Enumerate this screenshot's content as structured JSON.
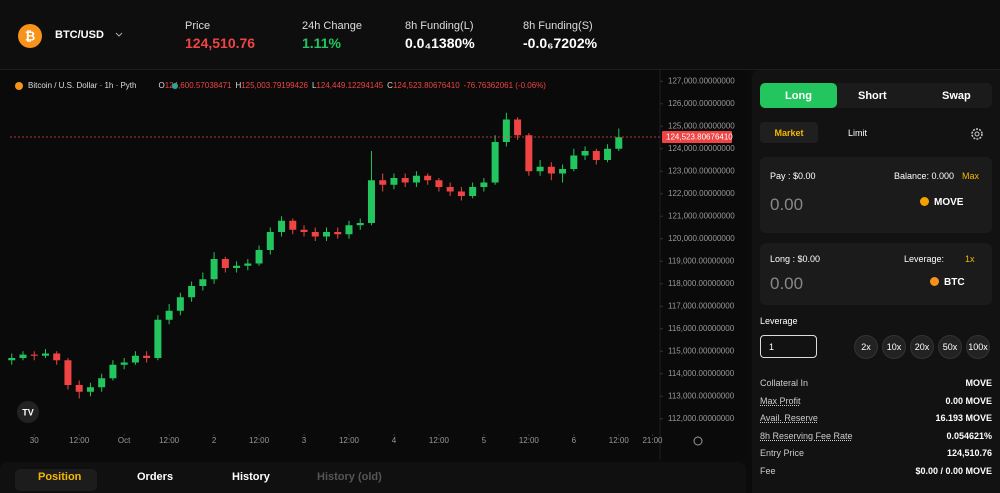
{
  "header": {
    "pair": "BTC/USD",
    "stats": [
      {
        "label": "Price",
        "value": "124,510.76",
        "color": "#ef4444"
      },
      {
        "label": "24h Change",
        "value": "1.11%",
        "color": "#22c55e"
      },
      {
        "label": "8h Funding(L)",
        "value": "0.0₄1380%",
        "color": "#ffffff"
      },
      {
        "label": "8h Funding(S)",
        "value": "-0.0₆7202%",
        "color": "#ffffff"
      }
    ]
  },
  "chart_data": {
    "type": "candlestick",
    "title": "Bitcoin / U.S. Dollar · 1h · Pyth",
    "legend": [
      {
        "key": "O",
        "value": "124,600.57038471"
      },
      {
        "key": "H",
        "value": "125,003.79199426"
      },
      {
        "key": "L",
        "value": "124,449.12294145"
      },
      {
        "key": "C",
        "value": "124,523.80676410"
      }
    ],
    "change": "-76.76362061 (-0.06%)",
    "x": [
      -6,
      -3,
      0,
      3,
      6,
      9,
      12,
      15,
      18,
      21,
      24,
      27,
      30,
      33,
      36,
      39,
      42,
      45,
      48,
      51,
      54,
      57,
      60,
      63,
      66,
      69,
      72,
      75,
      78,
      81,
      84,
      87,
      90,
      93,
      96,
      99,
      102,
      105,
      108,
      111,
      114,
      117,
      120,
      123,
      126,
      129,
      132,
      135,
      138,
      141,
      144,
      147,
      150,
      153,
      156
    ],
    "open": [
      114600,
      114700,
      114850,
      114800,
      114900,
      114600,
      113500,
      113200,
      113400,
      113800,
      114400,
      114500,
      114800,
      114700,
      116400,
      116800,
      117400,
      117900,
      118200,
      119100,
      118700,
      118800,
      118900,
      119500,
      120300,
      120800,
      120400,
      120300,
      120100,
      120300,
      120200,
      120600,
      120700,
      122600,
      122400,
      122700,
      122500,
      122800,
      122600,
      122300,
      122100,
      121900,
      122300,
      122500,
      124300,
      125300,
      124600,
      123000,
      123200,
      122900,
      123100,
      123700,
      123900,
      123500,
      124000
    ],
    "high": [
      114900,
      115000,
      115000,
      115100,
      115000,
      114700,
      113700,
      113600,
      114000,
      114600,
      114700,
      115000,
      115000,
      116600,
      117100,
      117600,
      118100,
      118500,
      119400,
      119200,
      119000,
      119100,
      119700,
      120500,
      121000,
      120900,
      120600,
      120500,
      120500,
      120500,
      120800,
      120900,
      123900,
      122900,
      122900,
      122900,
      123000,
      122900,
      122700,
      122500,
      122300,
      122500,
      122700,
      124600,
      125600,
      125400,
      124700,
      123500,
      123400,
      123300,
      124000,
      124100,
      124000,
      124200,
      124900
    ],
    "low": [
      114400,
      114600,
      114600,
      114700,
      114400,
      113300,
      112900,
      113000,
      113200,
      113700,
      114200,
      114400,
      114500,
      114600,
      116200,
      116600,
      117200,
      117700,
      118000,
      118500,
      118500,
      118600,
      118800,
      119300,
      120100,
      120200,
      120100,
      119900,
      119900,
      120000,
      120000,
      120400,
      120600,
      122100,
      122200,
      122300,
      122300,
      122400,
      122100,
      121900,
      121700,
      121800,
      122100,
      122400,
      124100,
      124400,
      122800,
      122800,
      122600,
      122500,
      123000,
      123500,
      123300,
      123400,
      123900
    ],
    "close": [
      114700,
      114850,
      114800,
      114900,
      114600,
      113500,
      113200,
      113400,
      113800,
      114400,
      114500,
      114800,
      114700,
      116400,
      116800,
      117400,
      117900,
      118200,
      119100,
      118700,
      118800,
      118900,
      119500,
      120300,
      120800,
      120400,
      120300,
      120100,
      120300,
      120200,
      120600,
      120700,
      122600,
      122400,
      122700,
      122500,
      122800,
      122600,
      122300,
      122100,
      121900,
      122300,
      122500,
      124300,
      125300,
      124600,
      123000,
      123200,
      122900,
      123100,
      123700,
      123900,
      123500,
      124000,
      124510
    ],
    "colors": {
      "up": "#22c55e",
      "down": "#ef4444"
    },
    "xlim": [
      -7,
      167
    ],
    "xticks": [
      {
        "value": 0,
        "label": "30"
      },
      {
        "value": 12,
        "label": "12:00"
      },
      {
        "value": 24,
        "label": "Oct"
      },
      {
        "value": 36,
        "label": "12:00"
      },
      {
        "value": 48,
        "label": "2"
      },
      {
        "value": 60,
        "label": "12:00"
      },
      {
        "value": 72,
        "label": "3"
      },
      {
        "value": 84,
        "label": "12:00"
      },
      {
        "value": 96,
        "label": "4"
      },
      {
        "value": 108,
        "label": "12:00"
      },
      {
        "value": 120,
        "label": "5"
      },
      {
        "value": 132,
        "label": "12:00"
      },
      {
        "value": 144,
        "label": "6"
      },
      {
        "value": 156,
        "label": "12:00"
      },
      {
        "value": 165,
        "label": "21:00"
      }
    ],
    "ylim": [
      111500,
      127500
    ],
    "yticks": [
      {
        "value": 112000,
        "label": "112,000.00000000"
      },
      {
        "value": 113000,
        "label": "113,000.00000000"
      },
      {
        "value": 114000,
        "label": "114,000.00000000"
      },
      {
        "value": 115000,
        "label": "115,000.00000000"
      },
      {
        "value": 116000,
        "label": "116,000.00000000"
      },
      {
        "value": 117000,
        "label": "117,000.00000000"
      },
      {
        "value": 118000,
        "label": "118,000.00000000"
      },
      {
        "value": 119000,
        "label": "119,000.00000000"
      },
      {
        "value": 120000,
        "label": "120,000.00000000"
      },
      {
        "value": 121000,
        "label": "121,000.00000000"
      },
      {
        "value": 122000,
        "label": "122,000.00000000"
      },
      {
        "value": 123000,
        "label": "123,000.00000000"
      },
      {
        "value": 124000,
        "label": "124,000.00000000"
      },
      {
        "value": 125000,
        "label": "125,000.00000000"
      },
      {
        "value": 126000,
        "label": "126,000.00000000"
      },
      {
        "value": 127000,
        "label": "127,000.00000000"
      }
    ],
    "last_price": {
      "value": 124523.8067641,
      "label": "124,523.80676410"
    },
    "grid": false
  },
  "panel": {
    "sides": [
      "Long",
      "Short",
      "Swap"
    ],
    "order_types": [
      "Market",
      "Limit"
    ],
    "pay": {
      "label": "Pay : $0.00",
      "balance": "Balance: 0.000",
      "max": "Max",
      "amount": "0.00",
      "token": "MOVE"
    },
    "long": {
      "label": "Long : $0.00",
      "leverage_label": "Leverage:",
      "leverage": "1x",
      "amount": "0.00",
      "token": "BTC"
    },
    "leverage": {
      "label": "Leverage",
      "input": "1",
      "options": [
        "2x",
        "10x",
        "20x",
        "50x",
        "100x"
      ]
    },
    "info": [
      [
        "Collateral In",
        "MOVE"
      ],
      [
        "Max Profit",
        "0.00 MOVE"
      ],
      [
        "Avail. Reserve",
        "16.193 MOVE"
      ],
      [
        "8h Reserving Fee Rate",
        "0.054621%"
      ],
      [
        "Entry Price",
        "124,510.76"
      ],
      [
        "Fee",
        "$0.00 / 0.00 MOVE"
      ]
    ]
  },
  "tabs": [
    "Position",
    "Orders",
    "History",
    "History (old)"
  ]
}
